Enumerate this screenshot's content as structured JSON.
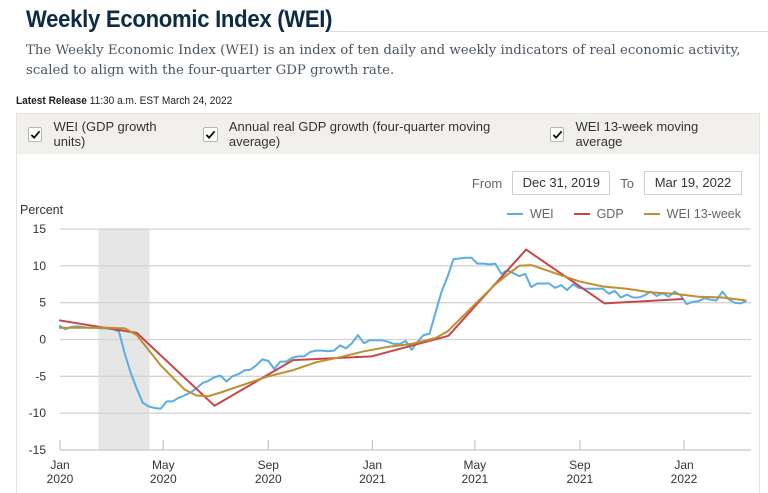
{
  "header": {
    "title": "Weekly Economic Index (WEI)",
    "description": "The Weekly Economic Index (WEI) is an index of ten daily and weekly indicators of real economic activity, scaled to align with the four-quarter GDP growth rate.",
    "release_label": "Latest Release",
    "release_value": "11:30 a.m. EST March 24, 2022"
  },
  "toggles": [
    {
      "label": "WEI (GDP growth units)",
      "checked": true
    },
    {
      "label": "Annual real GDP growth (four-quarter moving average)",
      "checked": true
    },
    {
      "label": "WEI 13-week moving average",
      "checked": true
    }
  ],
  "range": {
    "from_label": "From",
    "from_value": "Dec 31, 2019",
    "to_label": "To",
    "to_value": "Mar 19, 2022"
  },
  "chart_data": {
    "type": "line",
    "title": "Weekly Economic Index (WEI)",
    "ylabel": "Percent",
    "xlabel": "",
    "ylim": [
      -15,
      15
    ],
    "yticks": [
      15,
      10,
      5,
      0,
      -5,
      -10,
      -15
    ],
    "xlim": [
      "2019-12-31",
      "2022-03-19"
    ],
    "xticks": [
      {
        "date": "2020-01-01",
        "label": [
          "Jan",
          "2020"
        ]
      },
      {
        "date": "2020-05-01",
        "label": [
          "May",
          "2020"
        ]
      },
      {
        "date": "2020-09-01",
        "label": [
          "Sep",
          "2020"
        ]
      },
      {
        "date": "2021-01-01",
        "label": [
          "Jan",
          "2021"
        ]
      },
      {
        "date": "2021-05-01",
        "label": [
          "May",
          "2021"
        ]
      },
      {
        "date": "2021-09-01",
        "label": [
          "Sep",
          "2021"
        ]
      },
      {
        "date": "2022-01-01",
        "label": [
          "Jan",
          "2022"
        ]
      }
    ],
    "grid": true,
    "legend_position": "top-right",
    "recession_shading": {
      "start": "2020-02-15",
      "end": "2020-04-15"
    },
    "series": [
      {
        "name": "WEI",
        "color": "#5aaee0",
        "points": [
          [
            "2019-12-31",
            1.9
          ],
          [
            "2020-01-07",
            1.4
          ],
          [
            "2020-01-14",
            1.7
          ],
          [
            "2020-01-21",
            1.8
          ],
          [
            "2020-01-28",
            1.7
          ],
          [
            "2020-02-04",
            1.6
          ],
          [
            "2020-02-11",
            1.6
          ],
          [
            "2020-02-18",
            1.5
          ],
          [
            "2020-02-25",
            1.5
          ],
          [
            "2020-03-03",
            1.4
          ],
          [
            "2020-03-10",
            1.1
          ],
          [
            "2020-03-17",
            -2.0
          ],
          [
            "2020-03-24",
            -4.6
          ],
          [
            "2020-03-31",
            -6.7
          ],
          [
            "2020-04-07",
            -8.6
          ],
          [
            "2020-04-14",
            -9.1
          ],
          [
            "2020-04-21",
            -9.3
          ],
          [
            "2020-04-28",
            -9.4
          ],
          [
            "2020-05-05",
            -8.4
          ],
          [
            "2020-05-12",
            -8.4
          ],
          [
            "2020-05-19",
            -7.9
          ],
          [
            "2020-05-26",
            -7.6
          ],
          [
            "2020-06-02",
            -7.2
          ],
          [
            "2020-06-09",
            -6.6
          ],
          [
            "2020-06-16",
            -5.9
          ],
          [
            "2020-06-23",
            -5.6
          ],
          [
            "2020-06-30",
            -5.1
          ],
          [
            "2020-07-07",
            -4.9
          ],
          [
            "2020-07-14",
            -5.7
          ],
          [
            "2020-07-21",
            -5.0
          ],
          [
            "2020-07-28",
            -4.7
          ],
          [
            "2020-08-04",
            -4.2
          ],
          [
            "2020-08-11",
            -4.1
          ],
          [
            "2020-08-18",
            -3.5
          ],
          [
            "2020-08-25",
            -2.7
          ],
          [
            "2020-09-01",
            -2.9
          ],
          [
            "2020-09-08",
            -4.0
          ],
          [
            "2020-09-15",
            -3.0
          ],
          [
            "2020-09-22",
            -3.0
          ],
          [
            "2020-09-29",
            -2.5
          ],
          [
            "2020-10-06",
            -2.3
          ],
          [
            "2020-10-13",
            -2.3
          ],
          [
            "2020-10-20",
            -1.7
          ],
          [
            "2020-10-27",
            -1.5
          ],
          [
            "2020-11-03",
            -1.5
          ],
          [
            "2020-11-10",
            -1.6
          ],
          [
            "2020-11-17",
            -1.5
          ],
          [
            "2020-11-24",
            -0.8
          ],
          [
            "2020-12-01",
            -1.2
          ],
          [
            "2020-12-08",
            -0.5
          ],
          [
            "2020-12-15",
            0.6
          ],
          [
            "2020-12-22",
            -0.5
          ],
          [
            "2020-12-29",
            -0.1
          ],
          [
            "2021-01-05",
            -0.1
          ],
          [
            "2021-01-12",
            -0.1
          ],
          [
            "2021-01-19",
            -0.3
          ],
          [
            "2021-01-26",
            -0.6
          ],
          [
            "2021-02-02",
            -0.6
          ],
          [
            "2021-02-09",
            -0.2
          ],
          [
            "2021-02-16",
            -1.4
          ],
          [
            "2021-02-23",
            -0.3
          ],
          [
            "2021-03-02",
            0.6
          ],
          [
            "2021-03-09",
            0.8
          ],
          [
            "2021-03-16",
            3.7
          ],
          [
            "2021-03-23",
            6.5
          ],
          [
            "2021-03-30",
            8.5
          ],
          [
            "2021-04-06",
            10.9
          ],
          [
            "2021-04-13",
            11.0
          ],
          [
            "2021-04-20",
            11.1
          ],
          [
            "2021-04-27",
            11.1
          ],
          [
            "2021-05-04",
            10.3
          ],
          [
            "2021-05-11",
            10.3
          ],
          [
            "2021-05-18",
            10.2
          ],
          [
            "2021-05-25",
            10.3
          ],
          [
            "2021-06-01",
            8.9
          ],
          [
            "2021-06-08",
            9.4
          ],
          [
            "2021-06-15",
            9.0
          ],
          [
            "2021-06-22",
            8.6
          ],
          [
            "2021-06-29",
            8.9
          ],
          [
            "2021-07-06",
            7.1
          ],
          [
            "2021-07-13",
            7.6
          ],
          [
            "2021-07-20",
            7.6
          ],
          [
            "2021-07-27",
            7.6
          ],
          [
            "2021-08-03",
            7.0
          ],
          [
            "2021-08-10",
            7.4
          ],
          [
            "2021-08-17",
            6.7
          ],
          [
            "2021-08-24",
            7.5
          ],
          [
            "2021-08-31",
            7.0
          ],
          [
            "2021-09-07",
            6.9
          ],
          [
            "2021-09-14",
            6.9
          ],
          [
            "2021-09-21",
            6.9
          ],
          [
            "2021-09-28",
            6.9
          ],
          [
            "2021-10-05",
            6.2
          ],
          [
            "2021-10-12",
            6.6
          ],
          [
            "2021-10-19",
            5.7
          ],
          [
            "2021-10-26",
            6.1
          ],
          [
            "2021-11-02",
            5.7
          ],
          [
            "2021-11-09",
            5.7
          ],
          [
            "2021-11-16",
            6.0
          ],
          [
            "2021-11-23",
            6.5
          ],
          [
            "2021-11-30",
            5.9
          ],
          [
            "2021-12-07",
            6.3
          ],
          [
            "2021-12-14",
            5.8
          ],
          [
            "2021-12-21",
            6.5
          ],
          [
            "2021-12-28",
            6.0
          ],
          [
            "2022-01-04",
            4.8
          ],
          [
            "2022-01-11",
            5.1
          ],
          [
            "2022-01-18",
            5.2
          ],
          [
            "2022-01-25",
            5.6
          ],
          [
            "2022-02-01",
            5.4
          ],
          [
            "2022-02-08",
            5.3
          ],
          [
            "2022-02-15",
            6.5
          ],
          [
            "2022-02-22",
            5.5
          ],
          [
            "2022-03-01",
            5.0
          ],
          [
            "2022-03-08",
            4.9
          ],
          [
            "2022-03-15",
            5.2
          ]
        ]
      },
      {
        "name": "GDP",
        "color": "#c8464b",
        "points": [
          [
            "2019-12-31",
            2.6
          ],
          [
            "2020-03-31",
            0.9
          ],
          [
            "2020-06-30",
            -9.0
          ],
          [
            "2020-09-30",
            -2.8
          ],
          [
            "2020-12-31",
            -2.3
          ],
          [
            "2021-03-31",
            0.5
          ],
          [
            "2021-06-30",
            12.2
          ],
          [
            "2021-09-30",
            4.9
          ],
          [
            "2021-12-31",
            5.5
          ]
        ]
      },
      {
        "name": "WEI 13-week",
        "color": "#bf8e2f",
        "points": [
          [
            "2019-12-31",
            1.6
          ],
          [
            "2020-01-28",
            1.6
          ],
          [
            "2020-02-25",
            1.6
          ],
          [
            "2020-03-17",
            1.5
          ],
          [
            "2020-03-31",
            0.6
          ],
          [
            "2020-04-28",
            -3.5
          ],
          [
            "2020-05-26",
            -6.8
          ],
          [
            "2020-06-09",
            -7.6
          ],
          [
            "2020-06-23",
            -7.7
          ],
          [
            "2020-07-07",
            -7.2
          ],
          [
            "2020-08-04",
            -6.1
          ],
          [
            "2020-09-01",
            -5.0
          ],
          [
            "2020-09-29",
            -4.2
          ],
          [
            "2020-10-27",
            -3.1
          ],
          [
            "2020-11-24",
            -2.4
          ],
          [
            "2020-12-22",
            -1.6
          ],
          [
            "2021-01-19",
            -1.0
          ],
          [
            "2021-02-16",
            -0.6
          ],
          [
            "2021-03-16",
            0.2
          ],
          [
            "2021-03-30",
            1.1
          ],
          [
            "2021-04-27",
            4.3
          ],
          [
            "2021-05-25",
            7.5
          ],
          [
            "2021-06-08",
            8.8
          ],
          [
            "2021-06-22",
            10.0
          ],
          [
            "2021-07-06",
            10.1
          ],
          [
            "2021-08-03",
            9.0
          ],
          [
            "2021-08-31",
            7.9
          ],
          [
            "2021-09-28",
            7.2
          ],
          [
            "2021-10-26",
            6.9
          ],
          [
            "2021-11-23",
            6.4
          ],
          [
            "2021-12-21",
            6.2
          ],
          [
            "2022-01-18",
            5.8
          ],
          [
            "2022-02-15",
            5.7
          ],
          [
            "2022-03-15",
            5.3
          ]
        ]
      }
    ]
  }
}
